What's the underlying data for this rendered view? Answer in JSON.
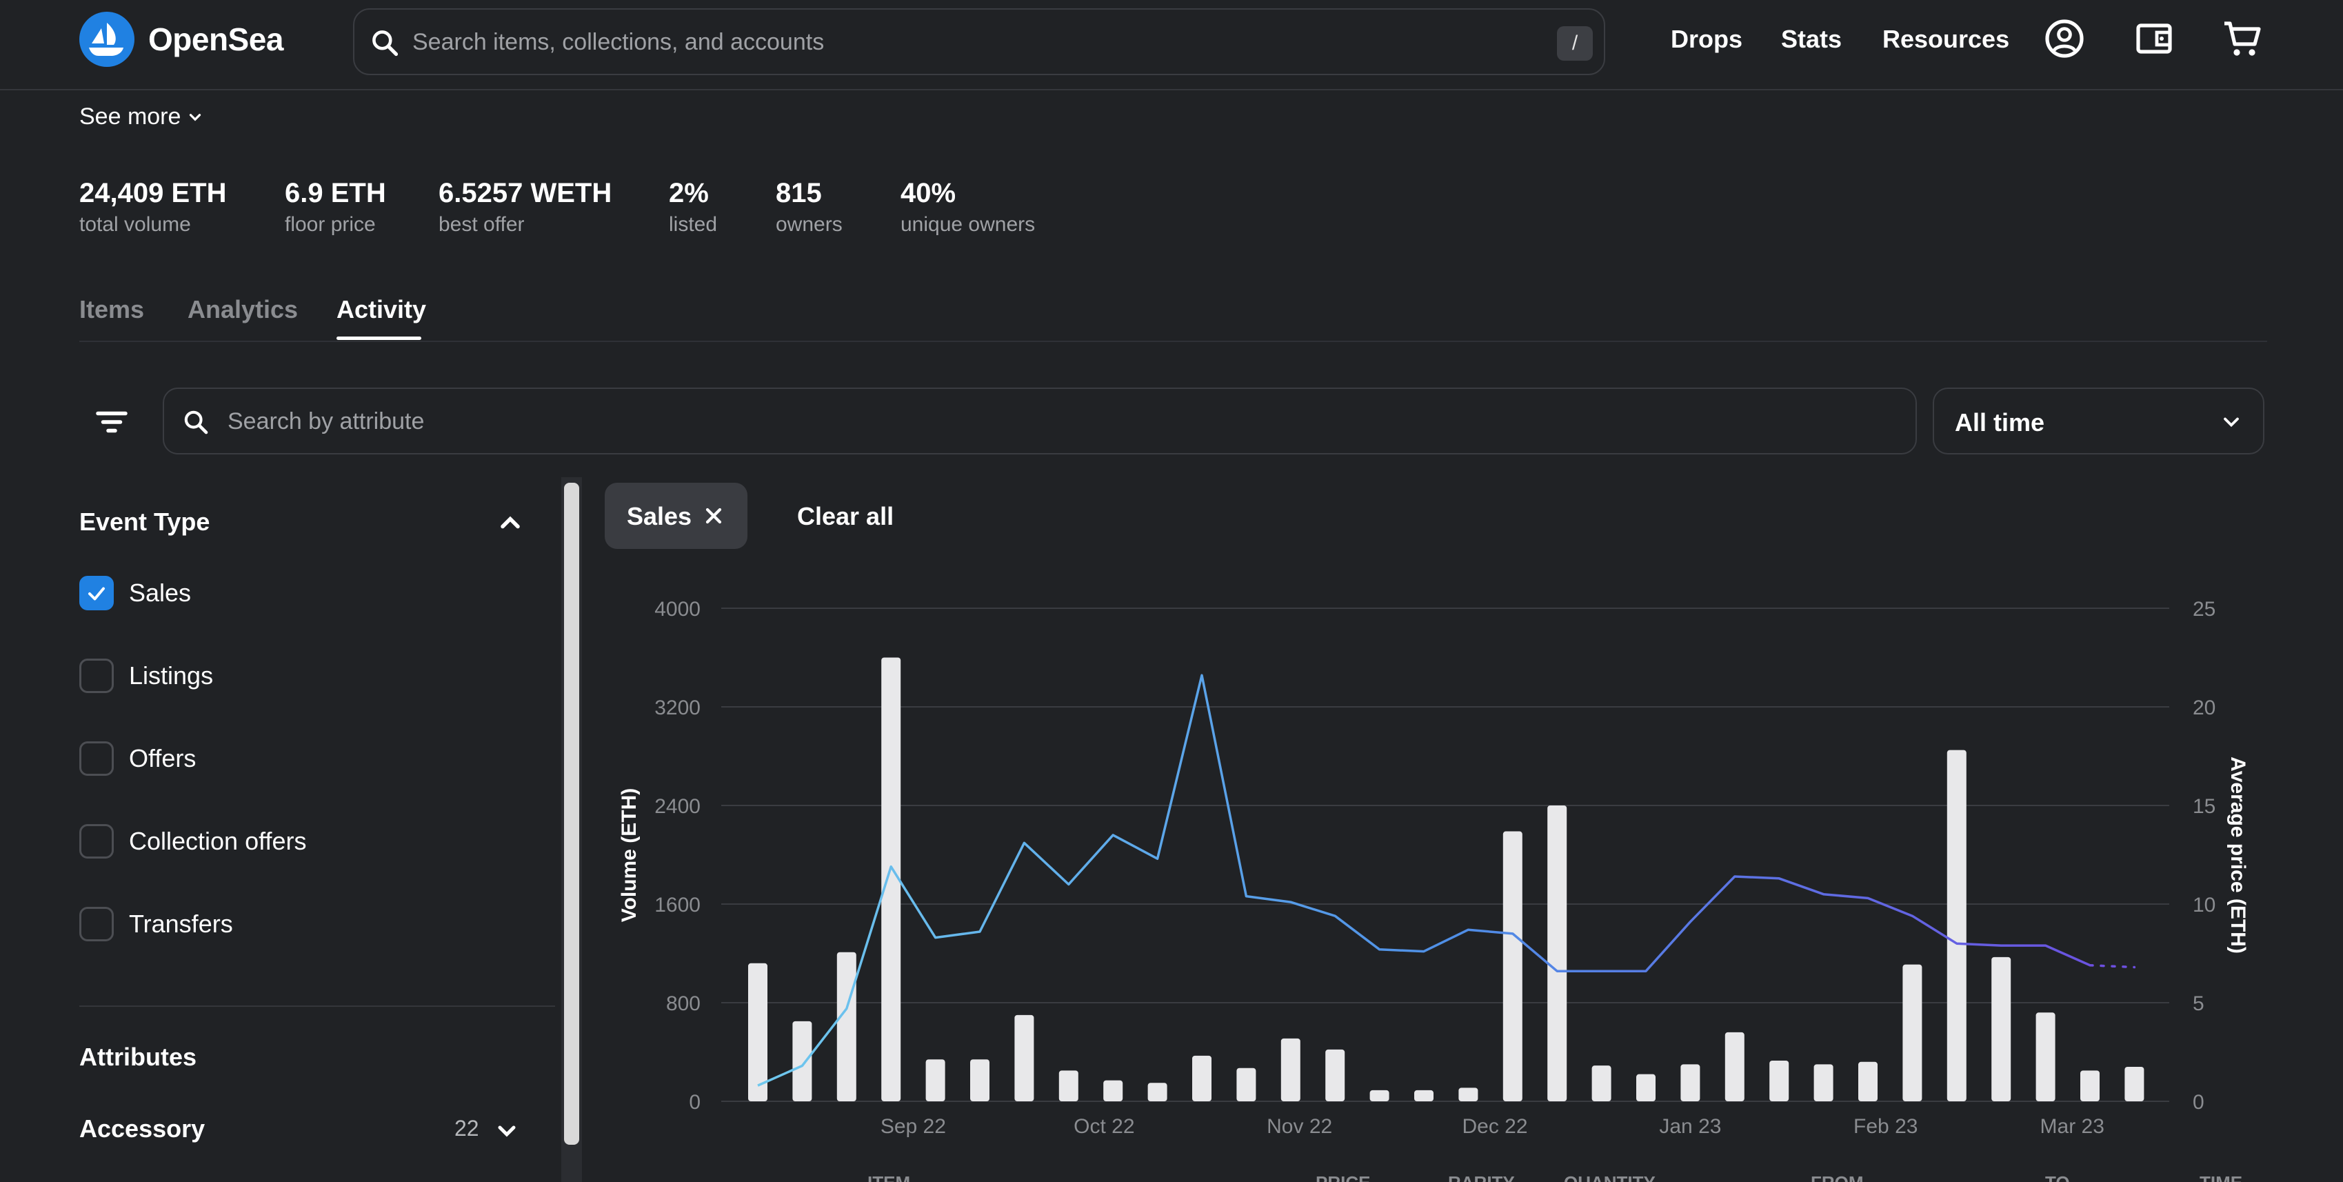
{
  "header": {
    "brand": "OpenSea",
    "search_placeholder": "Search items, collections, and accounts",
    "search_shortcut": "/",
    "nav": [
      "Drops",
      "Stats",
      "Resources"
    ],
    "icons": [
      "account-icon",
      "wallet-icon",
      "cart-icon"
    ]
  },
  "collection": {
    "see_more": "See more",
    "stats": [
      {
        "value": "24,409 ETH",
        "label": "total volume"
      },
      {
        "value": "6.9 ETH",
        "label": "floor price"
      },
      {
        "value": "6.5257 WETH",
        "label": "best offer"
      },
      {
        "value": "2%",
        "label": "listed"
      },
      {
        "value": "815",
        "label": "owners"
      },
      {
        "value": "40%",
        "label": "unique owners"
      }
    ]
  },
  "tabs": [
    {
      "label": "Items",
      "active": false
    },
    {
      "label": "Analytics",
      "active": false
    },
    {
      "label": "Activity",
      "active": true
    }
  ],
  "filters": {
    "attribute_search_placeholder": "Search by attribute",
    "time_range": "All time"
  },
  "sidebar": {
    "event_type_title": "Event Type",
    "event_types": [
      {
        "label": "Sales",
        "checked": true
      },
      {
        "label": "Listings",
        "checked": false
      },
      {
        "label": "Offers",
        "checked": false
      },
      {
        "label": "Collection offers",
        "checked": false
      },
      {
        "label": "Transfers",
        "checked": false
      }
    ],
    "attributes_title": "Attributes",
    "attributes": [
      {
        "label": "Accessory",
        "count": "22"
      }
    ]
  },
  "active_filters": {
    "chips": [
      "Sales"
    ],
    "clear_all": "Clear all"
  },
  "chart_data": {
    "type": "bar",
    "xlabel": "",
    "ylabel": "Volume (ETH)",
    "y2label": "Average price (ETH)",
    "ylim": [
      0,
      4000
    ],
    "y2lim": [
      0,
      25
    ],
    "yticks": [
      "4000",
      "3200",
      "2400",
      "1600",
      "800",
      "0"
    ],
    "y2ticks": [
      "25",
      "20",
      "15",
      "10",
      "5",
      "0"
    ],
    "xticks": [
      "Sep 22",
      "Oct 22",
      "Nov 22",
      "Dec 22",
      "Jan 23",
      "Feb 23",
      "Mar 23"
    ],
    "xtick_positions": [
      3.5,
      7.8,
      12.2,
      16.6,
      21.0,
      25.4,
      29.6
    ],
    "grid": true,
    "series": [
      {
        "values": [
          1120,
          650,
          1210,
          3600,
          340,
          340,
          700,
          250,
          170,
          150,
          370,
          270,
          510,
          420,
          90,
          90,
          110,
          2190,
          2400,
          290,
          220,
          300,
          560,
          330,
          300,
          320,
          1110,
          2850,
          1170,
          720,
          250,
          280
        ]
      },
      {
        "values": [
          0.8,
          1.8,
          4.7,
          11.9,
          8.3,
          8.6,
          13.1,
          11.0,
          13.5,
          12.3,
          21.6,
          10.4,
          10.1,
          9.4,
          7.7,
          7.6,
          8.7,
          8.5,
          6.6,
          6.6,
          6.6,
          9.1,
          11.4,
          11.3,
          10.5,
          10.3,
          9.4,
          8.0,
          7.9,
          7.9,
          6.9,
          6.8
        ]
      }
    ]
  },
  "table_headers_partial": [
    "ITEM",
    "PRICE",
    "RARITY",
    "QUANTITY",
    "FROM",
    "TO",
    "TIME"
  ]
}
